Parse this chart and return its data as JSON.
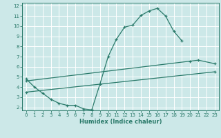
{
  "bg_color": "#cce8e8",
  "grid_color": "#ffffff",
  "line_color": "#2a7a6a",
  "line1_x": [
    0,
    1,
    2,
    3,
    4,
    5,
    6,
    7,
    8,
    9,
    10,
    11,
    12,
    13,
    14,
    15,
    16,
    17,
    18,
    19
  ],
  "line1_y": [
    4.8,
    4.0,
    3.4,
    2.8,
    2.4,
    2.2,
    2.2,
    1.85,
    1.75,
    4.3,
    7.0,
    8.7,
    9.9,
    10.1,
    11.05,
    11.5,
    11.75,
    11.0,
    9.5,
    8.55
  ],
  "line2_x": [
    0,
    20,
    21,
    23
  ],
  "line2_y": [
    4.6,
    6.55,
    6.65,
    6.3
  ],
  "line3_x": [
    0,
    23
  ],
  "line3_y": [
    3.5,
    5.5
  ],
  "xlabel": "Humidex (Indice chaleur)",
  "xlim": [
    -0.5,
    23.5
  ],
  "ylim": [
    1.7,
    12.3
  ],
  "yticks": [
    2,
    3,
    4,
    5,
    6,
    7,
    8,
    9,
    10,
    11,
    12
  ],
  "xticks": [
    0,
    1,
    2,
    3,
    4,
    5,
    6,
    7,
    8,
    9,
    10,
    11,
    12,
    13,
    14,
    15,
    16,
    17,
    18,
    19,
    20,
    21,
    22,
    23
  ],
  "tick_fontsize": 5.0,
  "xlabel_fontsize": 6.0,
  "linewidth": 0.9,
  "markersize": 3.0
}
